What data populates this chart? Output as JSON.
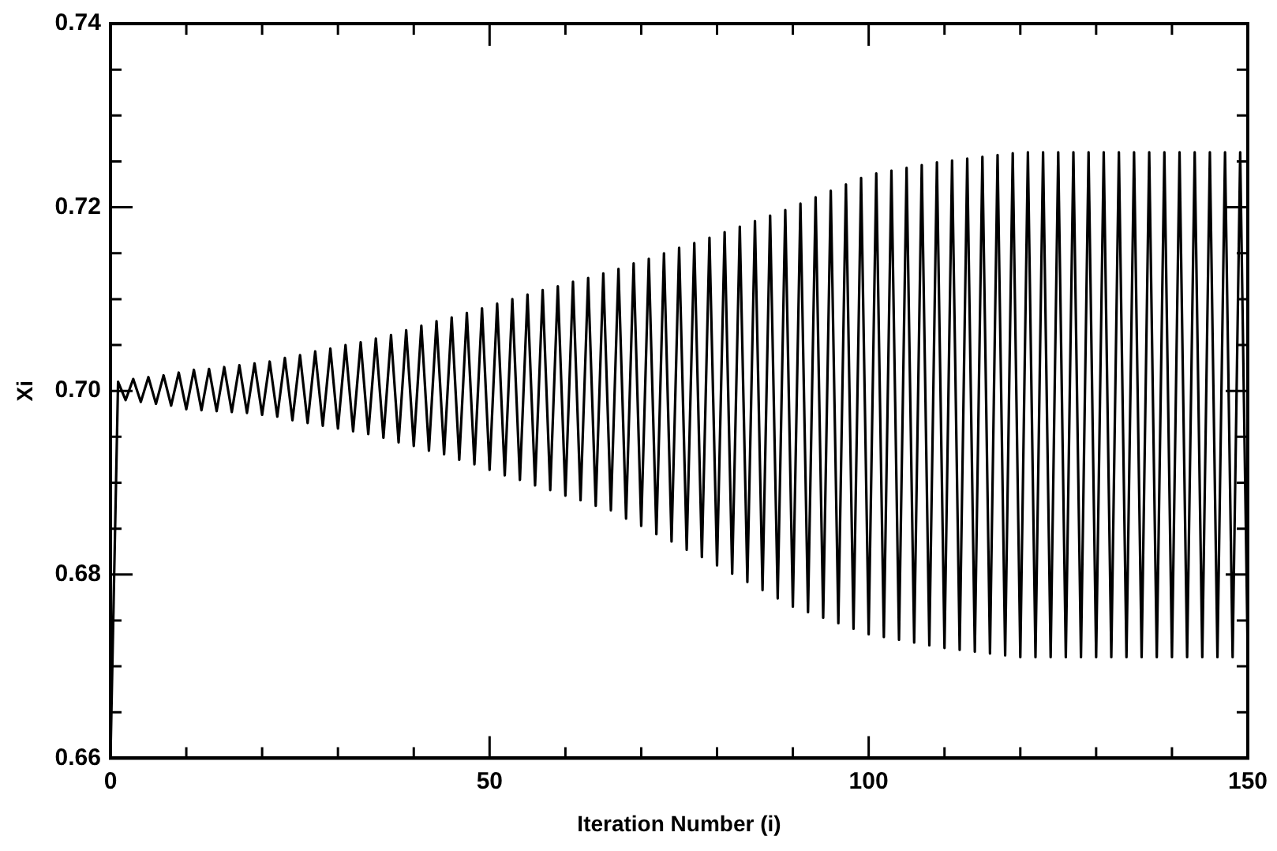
{
  "chart_data": {
    "type": "line",
    "xlabel": "Iteration Number (i)",
    "ylabel": "Xi",
    "grid": false,
    "legend": false,
    "marker": "none",
    "line_style": "solid",
    "xlim": [
      0,
      150
    ],
    "ylim": [
      0.66,
      0.74
    ],
    "xticks": [
      0,
      {
        "value": 10,
        "label": null
      },
      {
        "value": 20,
        "label": null
      },
      {
        "value": 30,
        "label": null
      },
      {
        "value": 40,
        "label": null
      },
      50,
      {
        "value": 60,
        "label": null
      },
      {
        "value": 70,
        "label": null
      },
      {
        "value": 80,
        "label": null
      },
      {
        "value": 90,
        "label": null
      },
      100,
      {
        "value": 110,
        "label": null
      },
      {
        "value": 120,
        "label": null
      },
      {
        "value": 130,
        "label": null
      },
      {
        "value": 140,
        "label": null
      },
      150
    ],
    "yticks": [
      {
        "value": 0.66,
        "label": "0.66"
      },
      {
        "value": 0.665,
        "label": null
      },
      {
        "value": 0.67,
        "label": null
      },
      {
        "value": 0.675,
        "label": null
      },
      {
        "value": 0.68,
        "label": "0.68"
      },
      {
        "value": 0.685,
        "label": null
      },
      {
        "value": 0.69,
        "label": null
      },
      {
        "value": 0.695,
        "label": null
      },
      {
        "value": 0.7,
        "label": "0.70"
      },
      {
        "value": 0.705,
        "label": null
      },
      {
        "value": 0.71,
        "label": null
      },
      {
        "value": 0.715,
        "label": null
      },
      {
        "value": 0.72,
        "label": "0.72"
      },
      {
        "value": 0.725,
        "label": null
      },
      {
        "value": 0.73,
        "label": null
      },
      {
        "value": 0.735,
        "label": null
      },
      {
        "value": 0.74,
        "label": "0.74"
      }
    ],
    "series": [
      {
        "color": "#000000",
        "x": [
          0,
          1,
          2,
          3,
          4,
          5,
          6,
          7,
          8,
          9,
          10,
          11,
          12,
          13,
          14,
          15,
          16,
          17,
          18,
          19,
          20,
          21,
          22,
          23,
          24,
          25,
          26,
          27,
          28,
          29,
          30,
          31,
          32,
          33,
          34,
          35,
          36,
          37,
          38,
          39,
          40,
          41,
          42,
          43,
          44,
          45,
          46,
          47,
          48,
          49,
          50,
          51,
          52,
          53,
          54,
          55,
          56,
          57,
          58,
          59,
          60,
          61,
          62,
          63,
          64,
          65,
          66,
          67,
          68,
          69,
          70,
          71,
          72,
          73,
          74,
          75,
          76,
          77,
          78,
          79,
          80,
          81,
          82,
          83,
          84,
          85,
          86,
          87,
          88,
          89,
          90,
          91,
          92,
          93,
          94,
          95,
          96,
          97,
          98,
          99,
          100,
          101,
          102,
          103,
          104,
          105,
          106,
          107,
          108,
          109,
          110,
          111,
          112,
          113,
          114,
          115,
          116,
          117,
          118,
          119,
          120,
          121,
          122,
          123,
          124,
          125,
          126,
          127,
          128,
          129,
          130,
          131,
          132,
          133,
          134,
          135,
          136,
          137,
          138,
          139,
          140,
          141,
          142,
          143,
          144,
          145,
          146,
          147,
          148,
          149,
          150
        ],
        "values": [
          0.66,
          0.701,
          0.699,
          0.7013,
          0.6988,
          0.7015,
          0.6986,
          0.7017,
          0.6984,
          0.702,
          0.698,
          0.7023,
          0.6979,
          0.7024,
          0.6978,
          0.7026,
          0.6977,
          0.7028,
          0.6976,
          0.703,
          0.6974,
          0.7032,
          0.6972,
          0.7036,
          0.6968,
          0.7039,
          0.6965,
          0.7043,
          0.6962,
          0.7046,
          0.6959,
          0.705,
          0.6956,
          0.7053,
          0.6953,
          0.7057,
          0.6949,
          0.7061,
          0.6944,
          0.7066,
          0.694,
          0.7071,
          0.6935,
          0.7076,
          0.6931,
          0.708,
          0.6925,
          0.7085,
          0.692,
          0.709,
          0.6914,
          0.7095,
          0.6908,
          0.71,
          0.6903,
          0.7105,
          0.6897,
          0.711,
          0.6892,
          0.7114,
          0.6886,
          0.7119,
          0.6881,
          0.7123,
          0.6875,
          0.7128,
          0.687,
          0.7133,
          0.6861,
          0.7139,
          0.6853,
          0.7144,
          0.6844,
          0.715,
          0.6836,
          0.7156,
          0.6827,
          0.7161,
          0.6819,
          0.7167,
          0.681,
          0.7173,
          0.6801,
          0.7179,
          0.6792,
          0.7185,
          0.6783,
          0.7191,
          0.6774,
          0.7197,
          0.6765,
          0.7204,
          0.6759,
          0.7211,
          0.6753,
          0.7218,
          0.6747,
          0.7225,
          0.6741,
          0.7232,
          0.6735,
          0.7237,
          0.6732,
          0.724,
          0.6729,
          0.7243,
          0.6726,
          0.7246,
          0.6723,
          0.7249,
          0.672,
          0.7251,
          0.6718,
          0.7253,
          0.6716,
          0.7255,
          0.6714,
          0.7257,
          0.6712,
          0.7259,
          0.671,
          0.726,
          0.671,
          0.726,
          0.671,
          0.726,
          0.671,
          0.726,
          0.671,
          0.726,
          0.671,
          0.726,
          0.671,
          0.726,
          0.671,
          0.726,
          0.671,
          0.726,
          0.671,
          0.726,
          0.671,
          0.726,
          0.671,
          0.726,
          0.671,
          0.726,
          0.671,
          0.726,
          0.671,
          0.726,
          0.671
        ]
      }
    ]
  }
}
